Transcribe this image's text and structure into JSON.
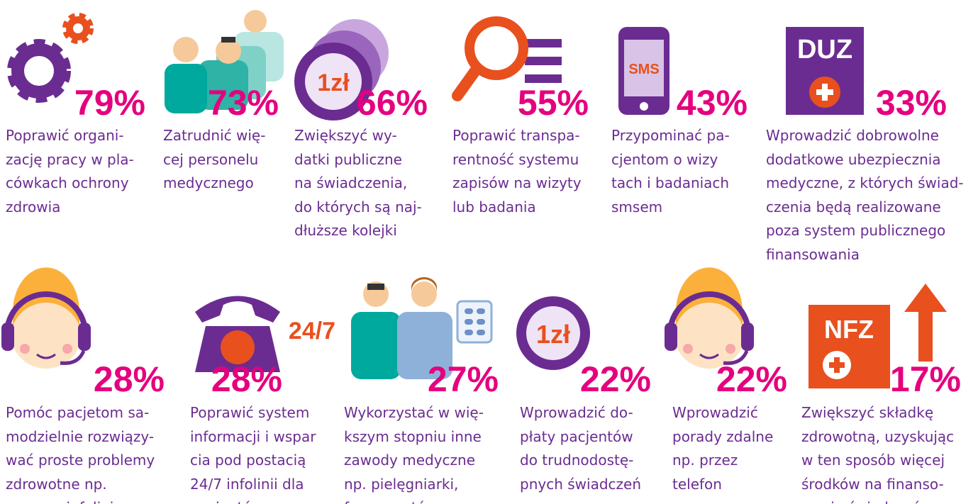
{
  "items": [
    {
      "percent": "79%",
      "lines": [
        "Poprawić organi-",
        "zację pracy w pla-",
        "cówkach ochrony",
        "zdrowia"
      ]
    },
    {
      "percent": "73%",
      "lines": [
        "Zatrudnić wię-",
        "cej personelu",
        "medycznego"
      ]
    },
    {
      "percent": "66%",
      "icon_text": "1zł",
      "lines": [
        "Zwiększyć wy-",
        "datki publiczne",
        "na świadczenia,",
        "do których są naj-",
        "dłuższe kolejki"
      ]
    },
    {
      "percent": "55%",
      "lines": [
        "Poprawić transpa-",
        "rentność systemu",
        "zapisów na wizyty",
        "lub badania"
      ]
    },
    {
      "percent": "43%",
      "icon_text": "SMS",
      "lines": [
        "Przypominać pa-",
        "cjentom o wizy",
        "tach i badaniach",
        "smsem"
      ]
    },
    {
      "percent": "33%",
      "icon_text": "DUZ",
      "lines": [
        "Wprowadzić dobrowolne",
        "dodatkowe ubezpiecznia",
        "medyczne, z których świad-",
        "czenia będą realizowane",
        "poza system publicznego",
        "finansowania"
      ]
    },
    {
      "percent": "28%",
      "lines": [
        "Pomóc pacjetom sa-",
        "modzielnie rozwiązy-",
        "wać proste problemy",
        "zdrowotne np.",
        "poprzez infolinię"
      ]
    },
    {
      "percent": "28%",
      "icon_text": "24/7",
      "lines": [
        "Poprawić system",
        "informacji i wspar",
        "cia pod postacią",
        "24/7 infolinii dla",
        "pacjentów"
      ]
    },
    {
      "percent": "27%",
      "lines": [
        "Wykorzystać w wię-",
        "kszym stopniu inne",
        "zawody medyczne",
        "np. pielęgniarki,",
        "farmaceutów"
      ]
    },
    {
      "percent": "22%",
      "icon_text": "1zł",
      "lines": [
        "Wprowadzić do-",
        "płaty pacjentów",
        "do trudnodostę-",
        "pnych świadczeń"
      ]
    },
    {
      "percent": "22%",
      "lines": [
        "Wprowadzić",
        "porady zdalne",
        "np. przez",
        "telefon"
      ]
    },
    {
      "percent": "17%",
      "icon_text": "NFZ",
      "lines": [
        "Zwiększyć składkę",
        "zdrowotną, uzyskując",
        "w ten sposób więcej",
        "środków na finanso-",
        "wanie świadczeń"
      ]
    }
  ]
}
